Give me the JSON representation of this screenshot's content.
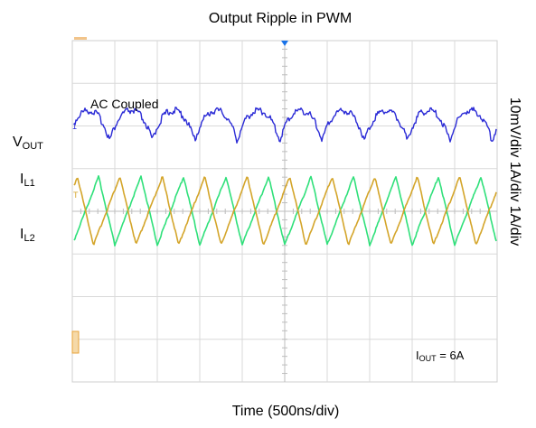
{
  "chart_data": {
    "type": "line",
    "title": "Output Ripple in PWM",
    "xlabel": "Time (500ns/div)",
    "right_label": "10mV/div 1A/div 1A/div",
    "annotation": "AC Coupled",
    "x_divisions": 10,
    "y_divisions": 8,
    "grid": true,
    "x_range_ns": [
      0,
      5000
    ],
    "channel_labels": [
      {
        "main": "V",
        "sub": "OUT"
      },
      {
        "main": "I",
        "sub": "L1"
      },
      {
        "main": "I",
        "sub": "L2"
      }
    ],
    "condition": {
      "main": "I",
      "sub": "OUT",
      "suffix": " = 6A"
    },
    "series": [
      {
        "channel": "VOUT",
        "color": "#2b2bd6",
        "scale": "10mV/div",
        "waveform": "ripple",
        "period_ns": 500,
        "peak_to_peak_div": 0.7
      },
      {
        "channel": "IL1",
        "color": "#2fe07a",
        "scale": "1A/div",
        "waveform": "triangle",
        "period_ns": 500,
        "peak_to_peak_div": 1.6,
        "phase_deg": 0
      },
      {
        "channel": "IL2",
        "color": "#d4a52a",
        "scale": "1A/div",
        "waveform": "triangle",
        "period_ns": 500,
        "peak_to_peak_div": 1.6,
        "phase_deg": 180
      }
    ],
    "colors": {
      "grid": "#d9d9d9",
      "frame": "#cfcfcf",
      "marker_top": "#1a73e8",
      "marker_side": "#e8a33a"
    }
  }
}
